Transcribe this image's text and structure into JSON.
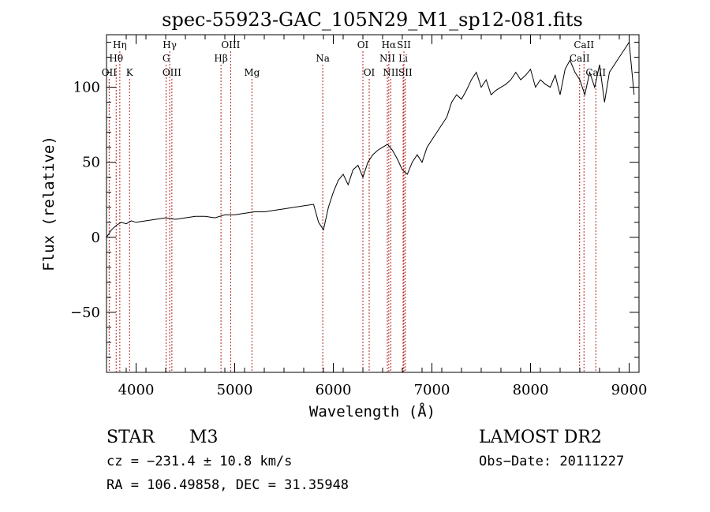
{
  "chart_data": {
    "type": "line",
    "title": "spec-55923-GAC_105N29_M1_sp12-081.fits",
    "xlabel": "Wavelength (Å)",
    "ylabel": "Flux (relative)",
    "xlim": [
      3700,
      9100
    ],
    "ylim": [
      -90,
      135
    ],
    "x_ticks": [
      4000,
      5000,
      6000,
      7000,
      8000,
      9000
    ],
    "y_ticks": [
      -50,
      0,
      50,
      100
    ],
    "grid": false,
    "series": [
      {
        "x": [
          3700,
          3750,
          3800,
          3850,
          3900,
          3950,
          4000,
          4100,
          4200,
          4300,
          4400,
          4500,
          4600,
          4700,
          4800,
          4900,
          5000,
          5100,
          5200,
          5300,
          5400,
          5500,
          5600,
          5700,
          5800,
          5850,
          5900,
          5950,
          6000,
          6050,
          6100,
          6150,
          6200,
          6250,
          6300,
          6350,
          6400,
          6450,
          6500,
          6550,
          6600,
          6650,
          6700,
          6750,
          6800,
          6850,
          6900,
          6950,
          7000,
          7050,
          7100,
          7150,
          7200,
          7250,
          7300,
          7350,
          7400,
          7450,
          7500,
          7550,
          7600,
          7650,
          7700,
          7750,
          7800,
          7850,
          7900,
          7950,
          8000,
          8050,
          8100,
          8150,
          8200,
          8250,
          8300,
          8350,
          8400,
          8450,
          8500,
          8550,
          8600,
          8650,
          8700,
          8750,
          8800,
          8850,
          8900,
          8950,
          9000,
          9050
        ],
        "y": [
          0,
          5,
          8,
          10,
          9,
          11,
          10,
          11,
          12,
          13,
          12,
          13,
          14,
          14,
          13,
          15,
          15,
          16,
          17,
          17,
          18,
          19,
          20,
          21,
          22,
          10,
          5,
          20,
          30,
          38,
          42,
          35,
          45,
          48,
          40,
          50,
          55,
          58,
          60,
          62,
          58,
          52,
          45,
          42,
          50,
          55,
          50,
          60,
          65,
          70,
          75,
          80,
          90,
          95,
          92,
          98,
          105,
          110,
          100,
          105,
          95,
          98,
          100,
          102,
          105,
          110,
          105,
          108,
          112,
          100,
          105,
          102,
          100,
          108,
          95,
          112,
          118,
          110,
          105,
          95,
          110,
          100,
          115,
          90,
          110,
          115,
          120,
          125,
          130,
          95
        ]
      }
    ],
    "line_markers": [
      {
        "label": "Hη",
        "x": 3835,
        "row": 1
      },
      {
        "label": "Hθ",
        "x": 3798,
        "row": 2
      },
      {
        "label": "OII",
        "x": 3727,
        "row": 3
      },
      {
        "label": "K",
        "x": 3934,
        "row": 3
      },
      {
        "label": "Hγ",
        "x": 4341,
        "row": 1
      },
      {
        "label": "G",
        "x": 4305,
        "row": 2
      },
      {
        "label": "OIII",
        "x": 4363,
        "row": 3
      },
      {
        "label": "OIII",
        "x": 4959,
        "row": 1
      },
      {
        "label": "Hβ",
        "x": 4861,
        "row": 2
      },
      {
        "label": "Mg",
        "x": 5175,
        "row": 3
      },
      {
        "label": "Na",
        "x": 5893,
        "row": 2
      },
      {
        "label": "OI",
        "x": 6300,
        "row": 1
      },
      {
        "label": "OI",
        "x": 6364,
        "row": 3
      },
      {
        "label": "Hα",
        "x": 6563,
        "row": 1
      },
      {
        "label": "SII",
        "x": 6716,
        "row": 1
      },
      {
        "label": "NII",
        "x": 6548,
        "row": 2
      },
      {
        "label": "Li",
        "x": 6708,
        "row": 2
      },
      {
        "label": "NII",
        "x": 6583,
        "row": 3
      },
      {
        "label": "SII",
        "x": 6731,
        "row": 3
      },
      {
        "label": "CaII",
        "x": 8542,
        "row": 1
      },
      {
        "label": "CaII",
        "x": 8498,
        "row": 2
      },
      {
        "label": "CaII",
        "x": 8662,
        "row": 3
      }
    ],
    "line_marker_color": "#b22222"
  },
  "info": {
    "object_class": "STAR",
    "subclass": "M3",
    "survey": "LAMOST DR2",
    "cz": "cz = −231.4 ± 10.8 km/s",
    "obs_date": "Obs−Date: 20111227",
    "coords": "RA = 106.49858, DEC =  31.35948"
  }
}
